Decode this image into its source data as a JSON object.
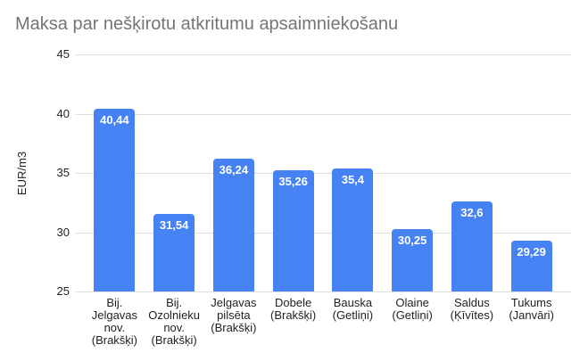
{
  "title": "Maksa par nešķirotu atkritumu apsaimniekošanu",
  "colors": {
    "bar": "#4682f4",
    "title_text": "#757575",
    "gridline": "#dddddd",
    "axis_text": "#222222",
    "value_label": "#ffffff",
    "background": "#ffffff"
  },
  "chart_data": {
    "type": "bar",
    "title": "Maksa par nešķirotu atkritumu apsaimniekošanu",
    "xlabel": "",
    "ylabel": "EUR/m3",
    "ylim": [
      25,
      45
    ],
    "yticks": [
      25,
      30,
      35,
      40,
      45
    ],
    "grid": true,
    "legend_position": "none",
    "categories": [
      "Bij. Jelgavas nov. (Brakšķi)",
      "Bij. Ozolnieku nov. (Brakšķi)",
      "Jelgavas pilsēta (Brakšķi)",
      "Dobele (Brakšķi)",
      "Bauska (Getliņi)",
      "Olaine (Getliņi)",
      "Saldus (Ķīvītes)",
      "Tukums (Janvāri)"
    ],
    "category_lines": [
      [
        "Bij.",
        "Jelgavas",
        "nov.",
        "(Brakšķi)"
      ],
      [
        "Bij.",
        "Ozolnieku",
        "nov.",
        "(Brakšķi)"
      ],
      [
        "Jelgavas",
        "pilsēta",
        "(Brakšķi)"
      ],
      [
        "Dobele",
        "(Brakšķi)"
      ],
      [
        "Bauska",
        "(Getliņi)"
      ],
      [
        "Olaine",
        "(Getliņi)"
      ],
      [
        "Saldus",
        "(Ķīvītes)"
      ],
      [
        "Tukums",
        "(Janvāri)"
      ]
    ],
    "values": [
      40.44,
      31.54,
      36.24,
      35.26,
      35.4,
      30.25,
      32.6,
      29.29
    ],
    "value_labels": [
      "40,44",
      "31,54",
      "36,24",
      "35,26",
      "35,4",
      "30,25",
      "32,6",
      "29,29"
    ]
  }
}
